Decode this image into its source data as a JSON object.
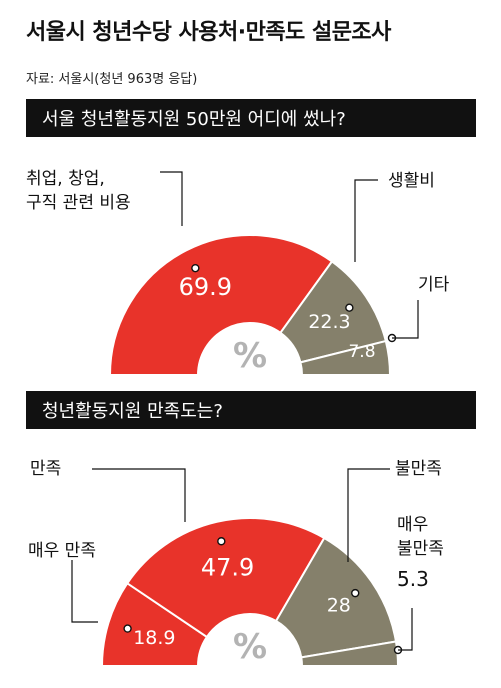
{
  "title": "서울시 청년수당 사용처·만족도 설문조사",
  "source": "자료: 서울시(청년 963명 응답)",
  "colors": {
    "red": "#e8332a",
    "olive": "#85806b",
    "bar": "#111111",
    "white": "#ffffff"
  },
  "chart_data": [
    {
      "type": "pie",
      "title": "서울 청년활동지원 50만원 어디에 썼나?",
      "center_label": "%",
      "slices": [
        {
          "label": "취업, 창업, 구직 관련 비용",
          "value": 69.9,
          "value_text": "69.9",
          "color": "#e8332a"
        },
        {
          "label": "생활비",
          "value": 22.3,
          "value_text": "22.3",
          "color": "#85806b"
        },
        {
          "label": "기타",
          "value": 7.8,
          "value_text": "7.8",
          "color": "#85806b"
        }
      ]
    },
    {
      "type": "pie",
      "title": "청년활동지원 만족도는?",
      "center_label": "%",
      "slices": [
        {
          "label": "매우 만족",
          "value": 18.9,
          "value_text": "18.9",
          "color": "#e8332a"
        },
        {
          "label": "만족",
          "value": 47.9,
          "value_text": "47.9",
          "color": "#e8332a"
        },
        {
          "label": "불만족",
          "value": 28,
          "value_text": "28",
          "color": "#85806b"
        },
        {
          "label": "매우 불만족",
          "value": 5.3,
          "value_text": "5.3",
          "color": "#85806b"
        }
      ]
    }
  ]
}
